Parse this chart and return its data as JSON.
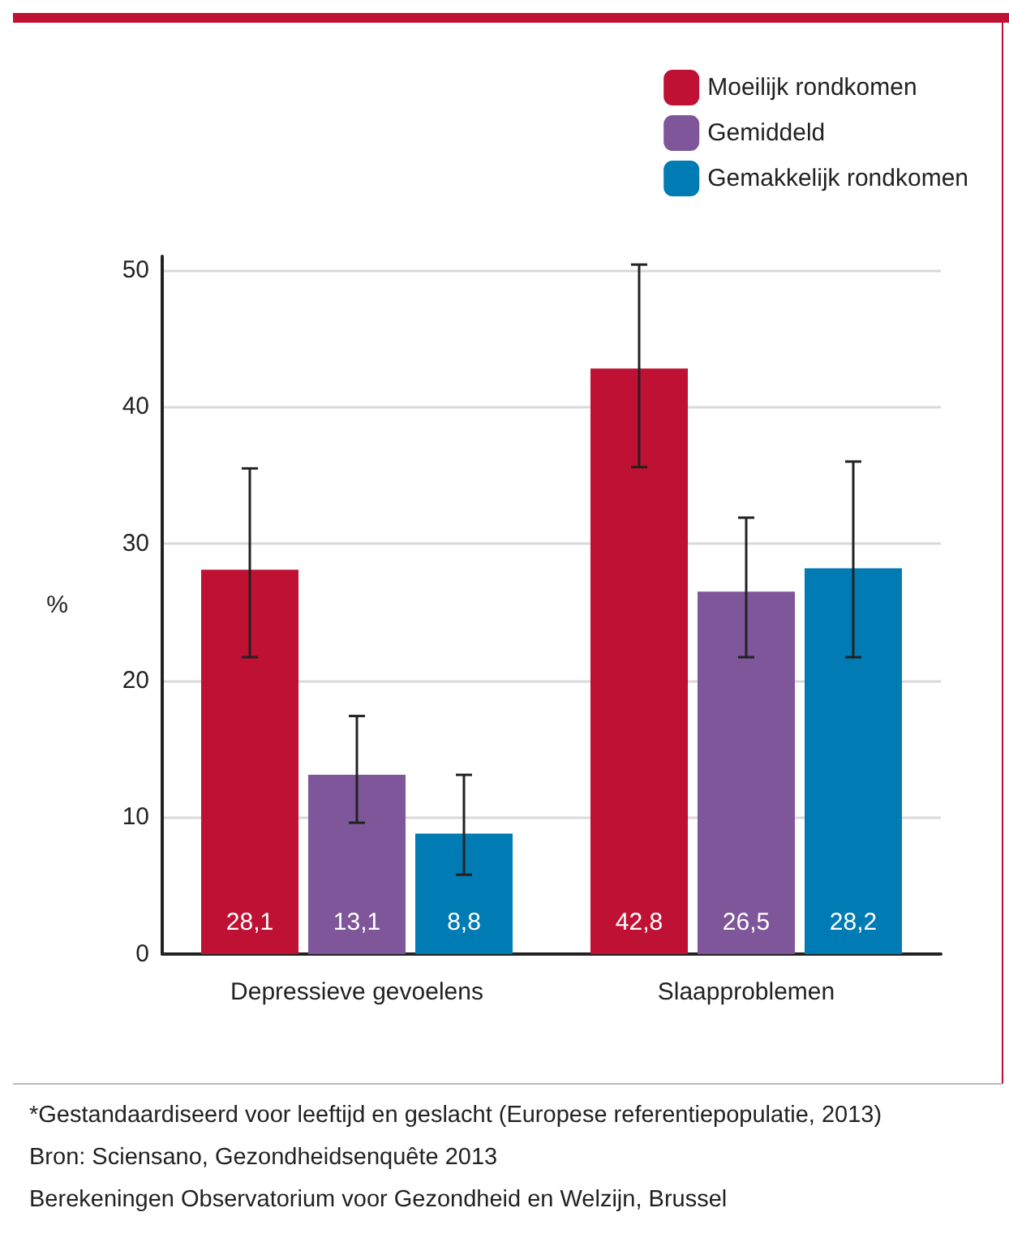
{
  "chart_data": {
    "type": "bar",
    "ylabel": "%",
    "categories": [
      "Depressieve gevoelens",
      "Slaapproblemen"
    ],
    "series": [
      {
        "name": "Moeilijk rondkomen",
        "color": "#be1133",
        "values": [
          28.1,
          42.8
        ],
        "value_labels": [
          "28,1",
          "42,8"
        ],
        "errors": [
          [
            21.7,
            35.5
          ],
          [
            35.6,
            50.4
          ]
        ]
      },
      {
        "name": "Gemiddeld",
        "color": "#7e5699",
        "values": [
          13.1,
          26.5
        ],
        "value_labels": [
          "13,1",
          "26,5"
        ],
        "errors": [
          [
            9.6,
            17.4
          ],
          [
            21.7,
            31.9
          ]
        ]
      },
      {
        "name": "Gemakkelijk rondkomen",
        "color": "#007bb3",
        "values": [
          8.8,
          28.2
        ],
        "value_labels": [
          "8,8",
          "28,2"
        ],
        "errors": [
          [
            5.8,
            13.1
          ],
          [
            21.7,
            36.0
          ]
        ]
      }
    ],
    "ylim": [
      0,
      51
    ],
    "yticks": [
      0,
      10,
      20,
      30,
      40,
      50
    ],
    "grid": "y",
    "legend": "top right",
    "annotations": [
      "*Gestandaardiseerd voor leeftijd en geslacht (Europese referentiepopulatie, 2013)",
      "Bron: Sciensano, Gezondheidsenquête 2013",
      "Berekeningen Observatorium voor Gezondheid en Welzijn, Brussel"
    ]
  }
}
